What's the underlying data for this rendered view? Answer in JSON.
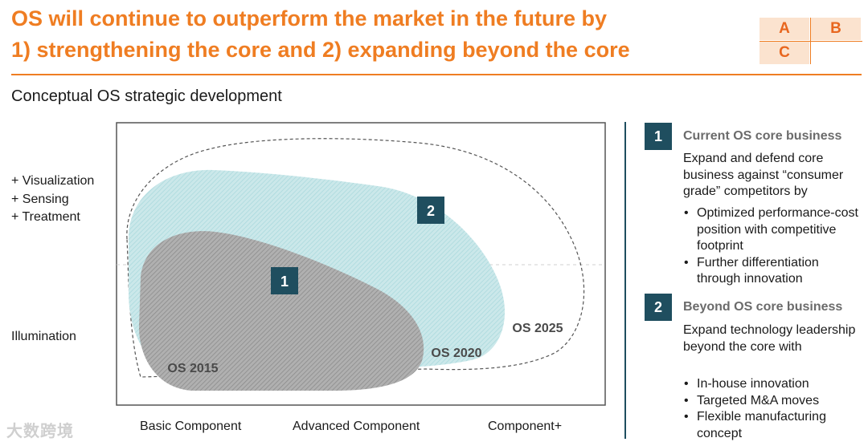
{
  "header": {
    "title_line1": "OS will continue to outperform the market in the future by",
    "title_line2": "1) strengthening the core and 2) expanding beyond the core",
    "matrix": {
      "a": "A",
      "b": "B",
      "c": "C"
    }
  },
  "subtitle": "Conceptual OS strategic development",
  "diagram": {
    "y_labels": {
      "top": [
        "+ Visualization",
        "+ Sensing",
        "+ Treatment"
      ],
      "bottom": "Illumination"
    },
    "x_labels": [
      "Basic Component",
      "Advanced Component",
      "Component+"
    ],
    "areas": [
      {
        "label": "OS 2015",
        "fill": "#9e9e9e"
      },
      {
        "label": "OS 2020",
        "fill": "#bfe3e6"
      },
      {
        "label": "OS 2025",
        "fill": "none"
      }
    ],
    "markers": [
      "1",
      "2"
    ],
    "marker_color": "#1f4e5f"
  },
  "sections": [
    {
      "number": "1",
      "heading": "Current OS core business",
      "body": "Expand and defend core business against “consumer grade” competitors by",
      "bullets": [
        "Optimized performance-cost position with competitive footprint",
        "Further differentiation through innovation"
      ]
    },
    {
      "number": "2",
      "heading": "Beyond OS core business",
      "body": "Expand technology leadership beyond the core with",
      "bullets": [
        "In-house innovation",
        "Targeted M&A moves",
        "Flexible manufacturing concept"
      ]
    }
  ],
  "watermark": "大数跨境",
  "colors": {
    "accent": "#ef7d22",
    "teal_dark": "#1f4e5f",
    "light_teal": "#bfe3e6",
    "gray": "#9e9e9e"
  }
}
